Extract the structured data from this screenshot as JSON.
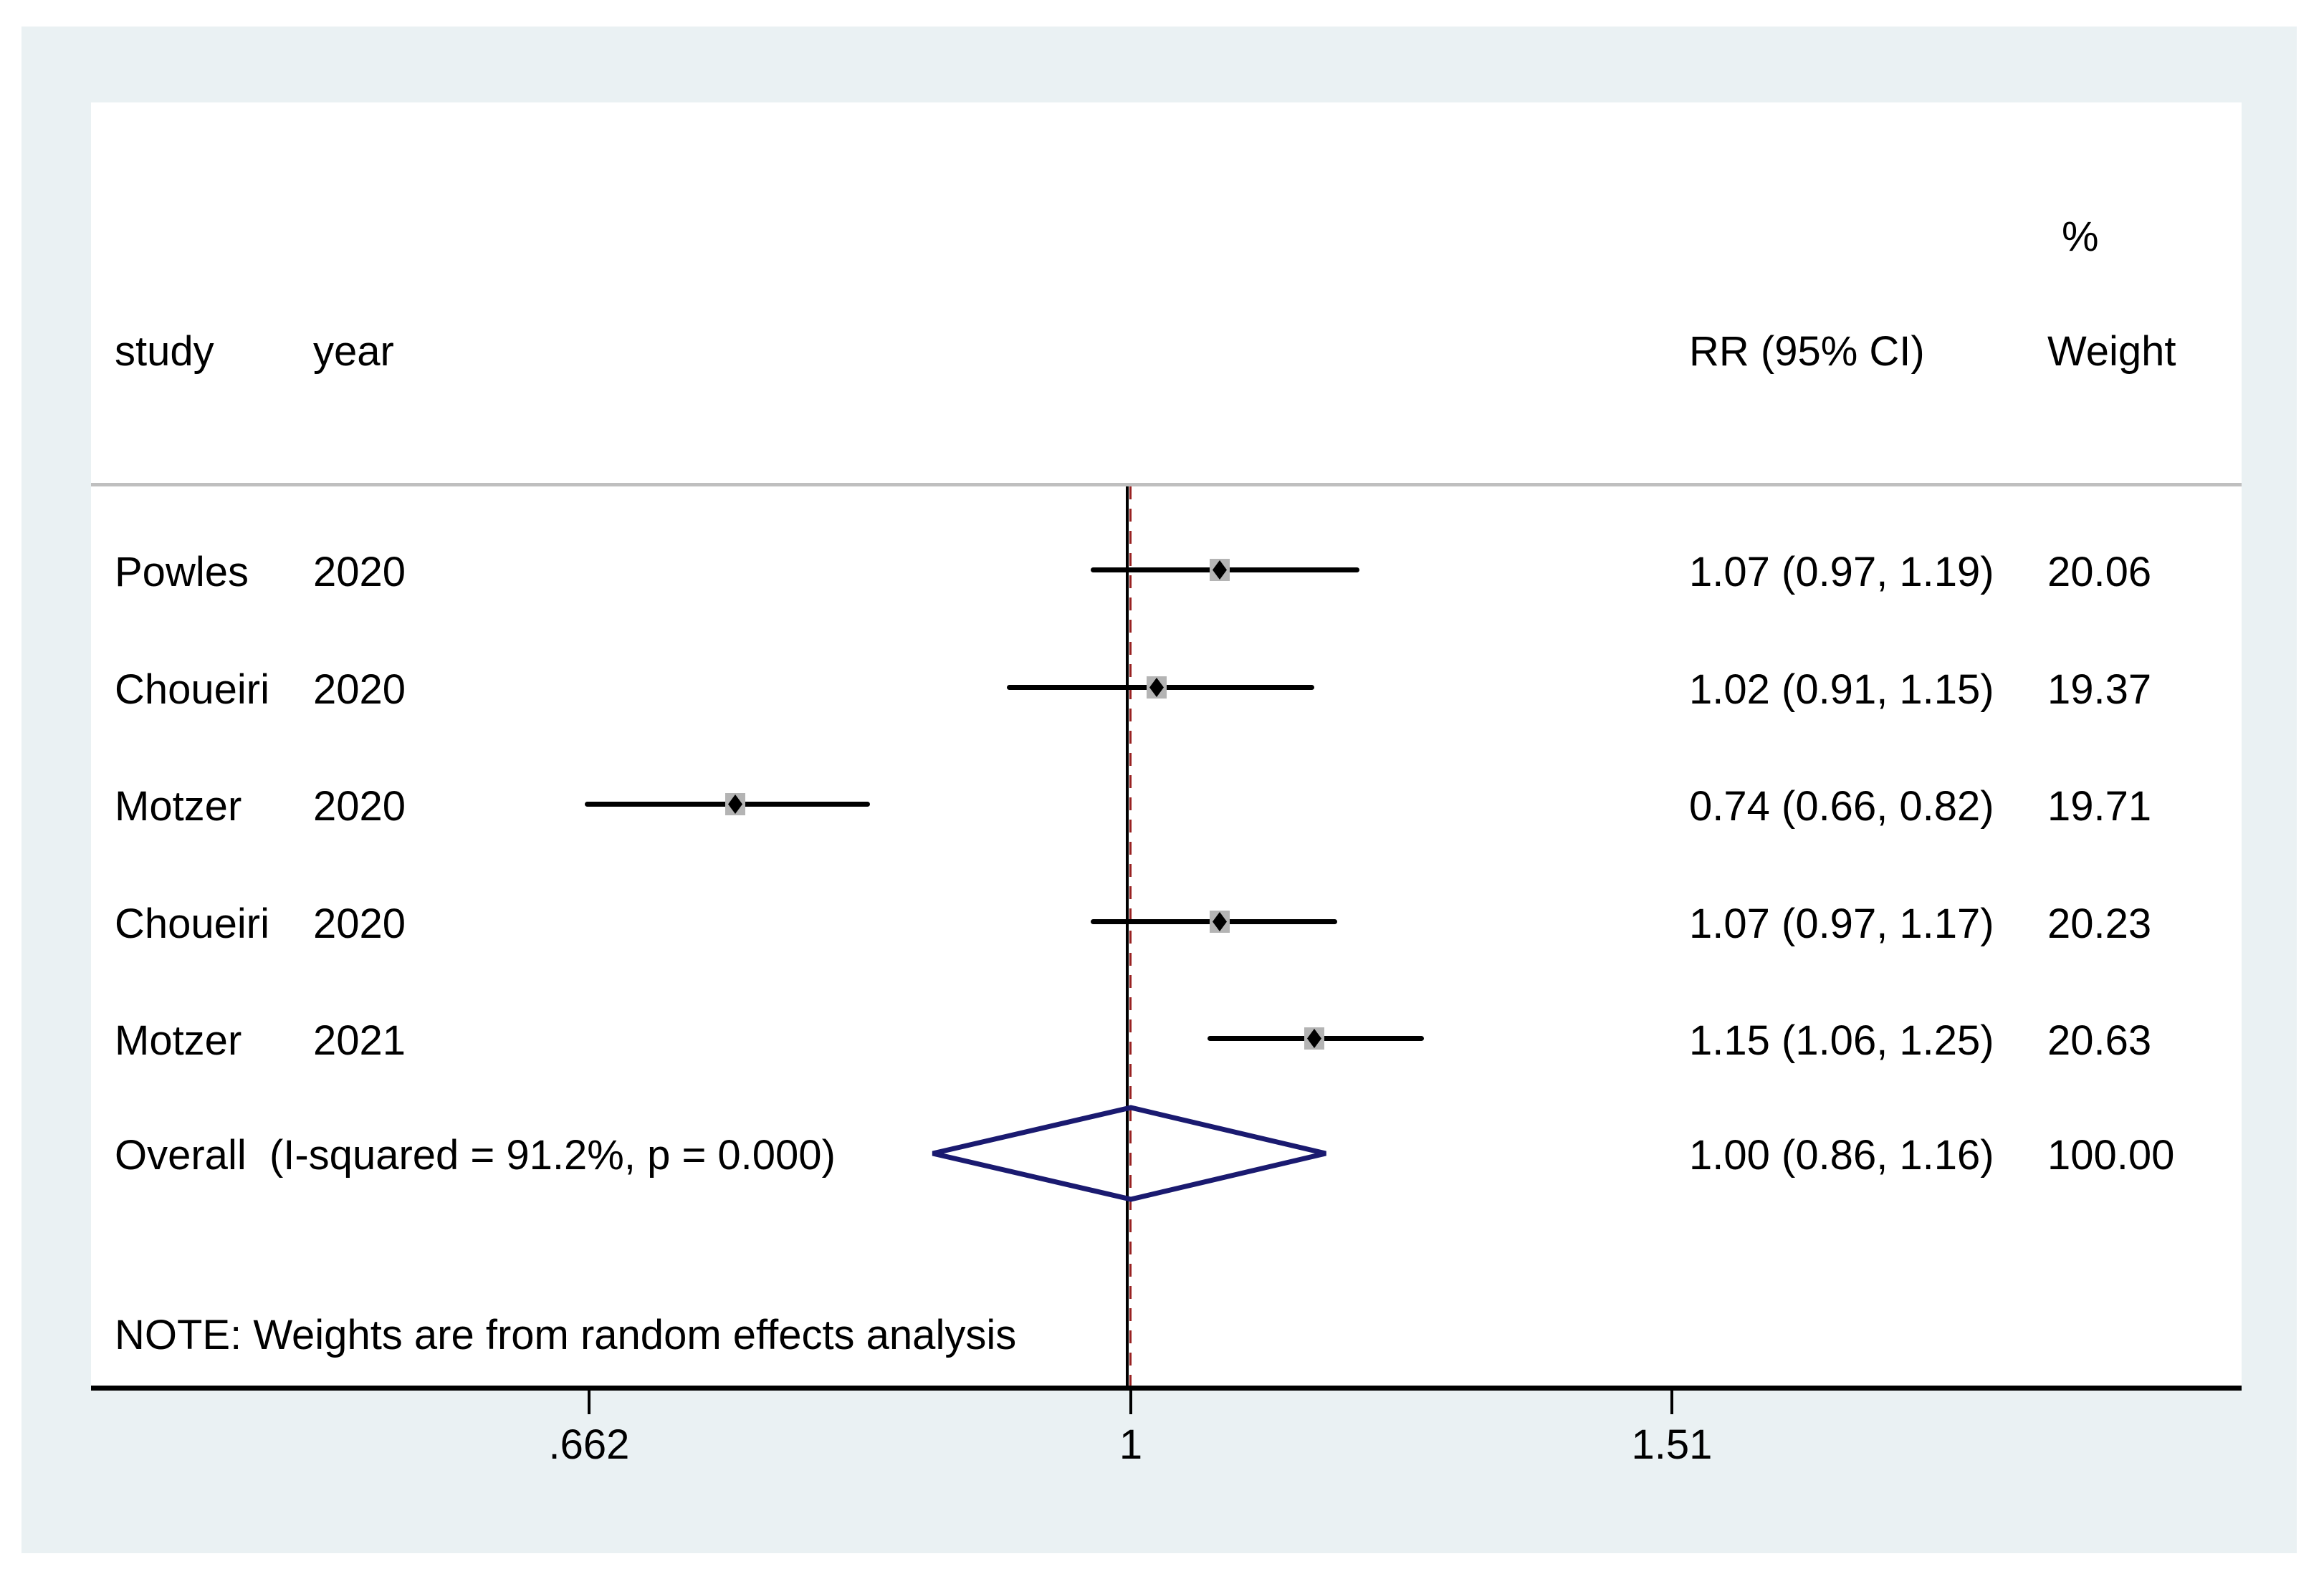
{
  "header": {
    "study": "study",
    "year": "year",
    "rr": "RR (95% CI)",
    "percent": "%",
    "weight": "Weight"
  },
  "note": "NOTE: Weights are from random effects analysis",
  "chart_data": {
    "type": "forest",
    "effect_measure": "RR",
    "x_scale": "log",
    "studies": [
      {
        "study": "Powles",
        "year": "2020",
        "rr": 1.07,
        "lo": 0.97,
        "hi": 1.19,
        "rr_label": "1.07 (0.97, 1.19)",
        "weight": "20.06"
      },
      {
        "study": "Choueiri",
        "year": "2020",
        "rr": 1.02,
        "lo": 0.91,
        "hi": 1.15,
        "rr_label": "1.02 (0.91, 1.15)",
        "weight": "19.37"
      },
      {
        "study": "Motzer",
        "year": "2020",
        "rr": 0.74,
        "lo": 0.66,
        "hi": 0.82,
        "rr_label": "0.74 (0.66, 0.82)",
        "weight": "19.71"
      },
      {
        "study": "Choueiri",
        "year": "2020",
        "rr": 1.07,
        "lo": 0.97,
        "hi": 1.17,
        "rr_label": "1.07 (0.97, 1.17)",
        "weight": "20.23"
      },
      {
        "study": "Motzer",
        "year": "2021",
        "rr": 1.15,
        "lo": 1.06,
        "hi": 1.25,
        "rr_label": "1.15 (1.06, 1.25)",
        "weight": "20.63"
      }
    ],
    "overall": {
      "label": "Overall  (I-squared = 91.2%, p = 0.000)",
      "rr": 1.0,
      "lo": 0.86,
      "hi": 1.16,
      "rr_label": "1.00 (0.86, 1.16)",
      "weight": "100.00"
    },
    "axis_ticks": [
      {
        "value": 0.662,
        "label": ".662"
      },
      {
        "value": 1,
        "label": "1"
      },
      {
        "value": 1.51,
        "label": "1.51"
      }
    ],
    "null_line_value": 1,
    "overall_line_value": 1.0,
    "colors": {
      "panel_bg": "#eaf1f3",
      "plot_bg": "#ffffff",
      "text": "#000000",
      "line": "#000000",
      "separator": "#bfbfbf",
      "weight_box": "#b4b4b4",
      "diamond": "#1a1a70",
      "overall_line": "#992222"
    }
  }
}
